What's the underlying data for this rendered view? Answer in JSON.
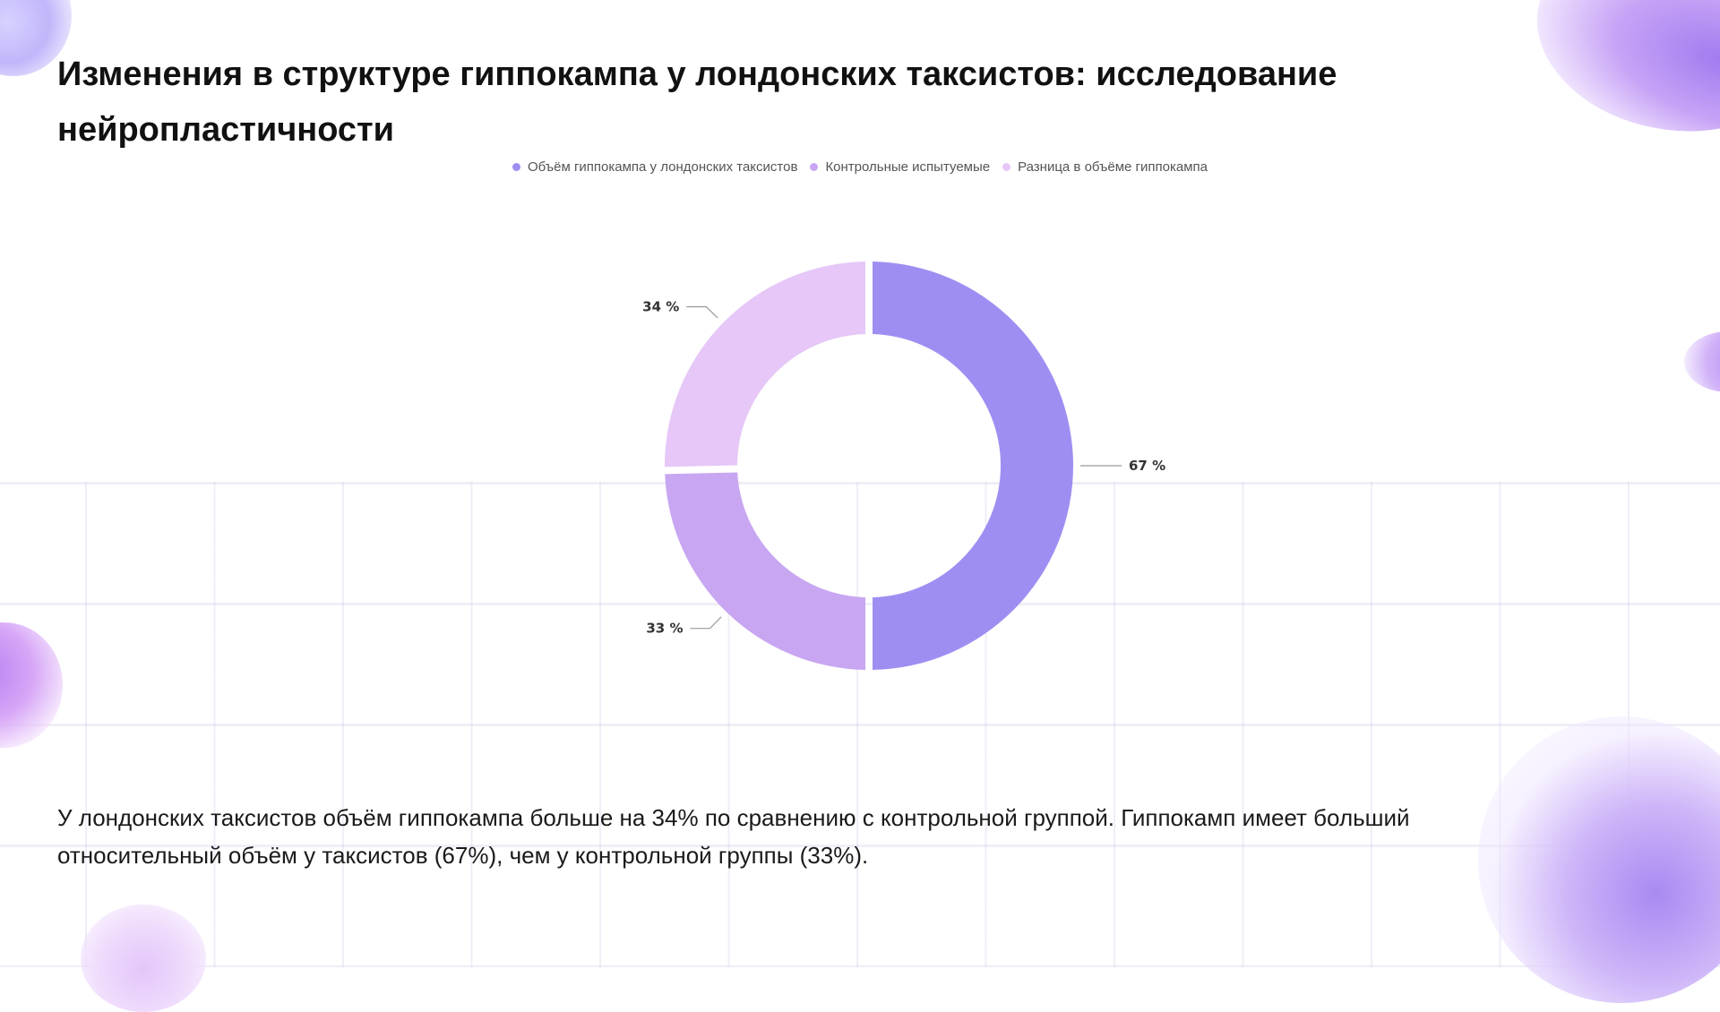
{
  "title": "Изменения в структуре гиппокампа у лондонских таксистов: исследование нейропластичности",
  "summary": "У лондонских таксистов объём гиппокампа больше на 34% по сравнению с контрольной группой. Гиппокамп имеет больший относительный объём у таксистов (67%), чем у контрольной группы (33%).",
  "colors": {
    "taxi": "#9f8ef2",
    "control": "#c8a6f2",
    "difference": "#e6c7f7"
  },
  "chart_data": {
    "type": "pie",
    "donut": true,
    "legend_position": "top",
    "categories": [
      "Объём гиппокампа у лондонских таксистов",
      "Контрольные испытуемые",
      "Разница в объёме гиппокампа"
    ],
    "values": [
      67,
      33,
      34
    ],
    "labels": [
      "67 %",
      "33 %",
      "34 %"
    ]
  }
}
